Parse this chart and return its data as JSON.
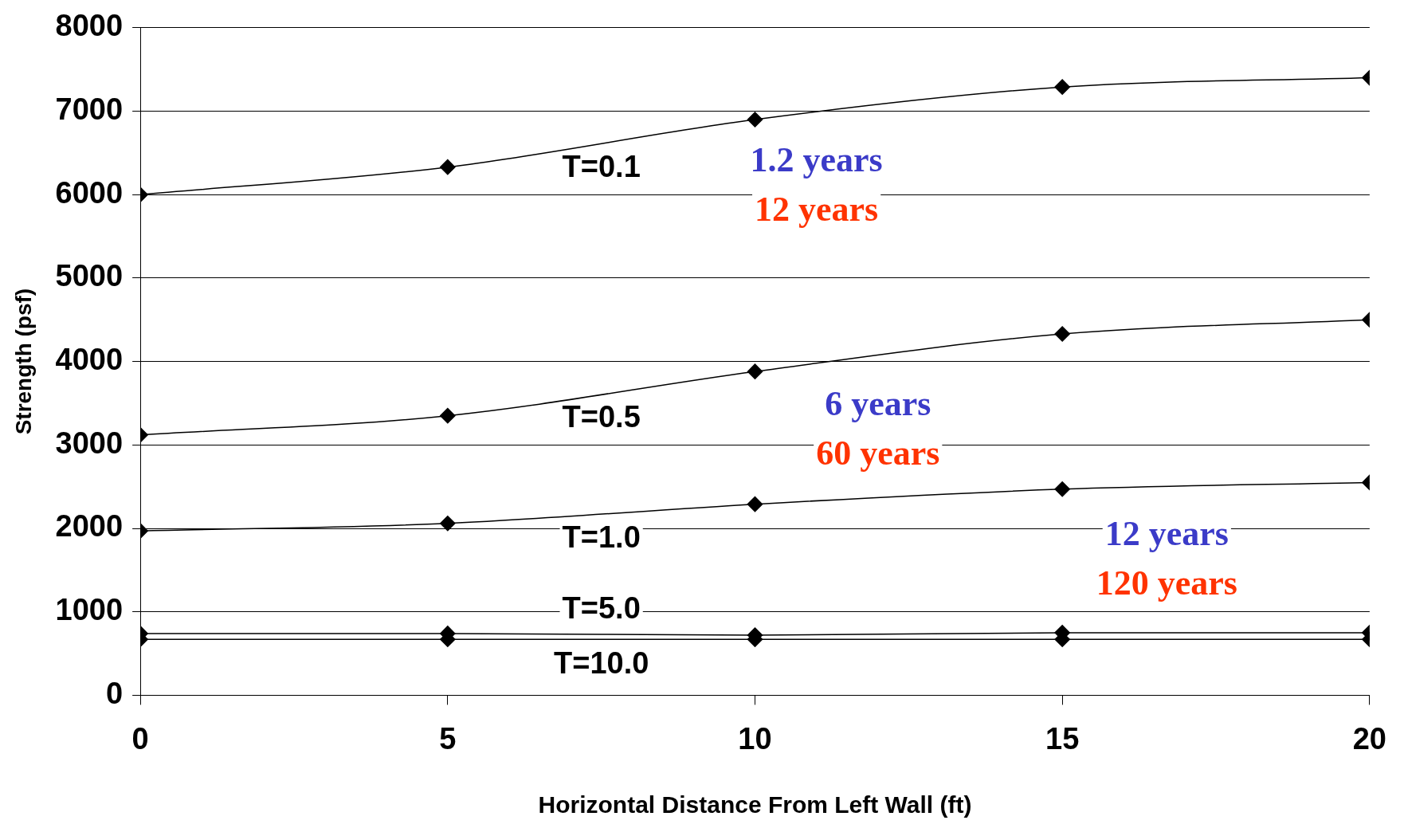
{
  "chart_data": {
    "type": "line",
    "xlabel": "Horizontal Distance From Left Wall (ft)",
    "ylabel": "Strength (psf)",
    "x": [
      0,
      5,
      10,
      15,
      20
    ],
    "series": [
      {
        "name": "T=0.1",
        "color": "#000000",
        "values": [
          6000,
          6330,
          6900,
          7290,
          7400
        ]
      },
      {
        "name": "T=0.5",
        "color": "#000000",
        "values": [
          3120,
          3350,
          3880,
          4330,
          4500
        ]
      },
      {
        "name": "T=1.0",
        "color": "#000000",
        "values": [
          1970,
          2060,
          2290,
          2470,
          2550
        ]
      },
      {
        "name": "T=5.0",
        "color": "#000000",
        "values": [
          740,
          740,
          720,
          750,
          750
        ]
      },
      {
        "name": "T=10.0",
        "color": "#000000",
        "values": [
          670,
          670,
          670,
          670,
          670
        ]
      }
    ],
    "annotations": [
      "1.2 years",
      "12 years",
      "6 years",
      "60 years",
      "12 years",
      "120 years"
    ],
    "xlim": [
      0,
      20
    ],
    "xticks": [
      0,
      5,
      10,
      15,
      20
    ],
    "ylim": [
      0,
      8000
    ],
    "yticks": [
      0,
      1000,
      2000,
      3000,
      4000,
      5000,
      6000,
      7000,
      8000
    ],
    "grid": "y",
    "legend": false,
    "marker": "diamond",
    "line_style": "solid"
  }
}
